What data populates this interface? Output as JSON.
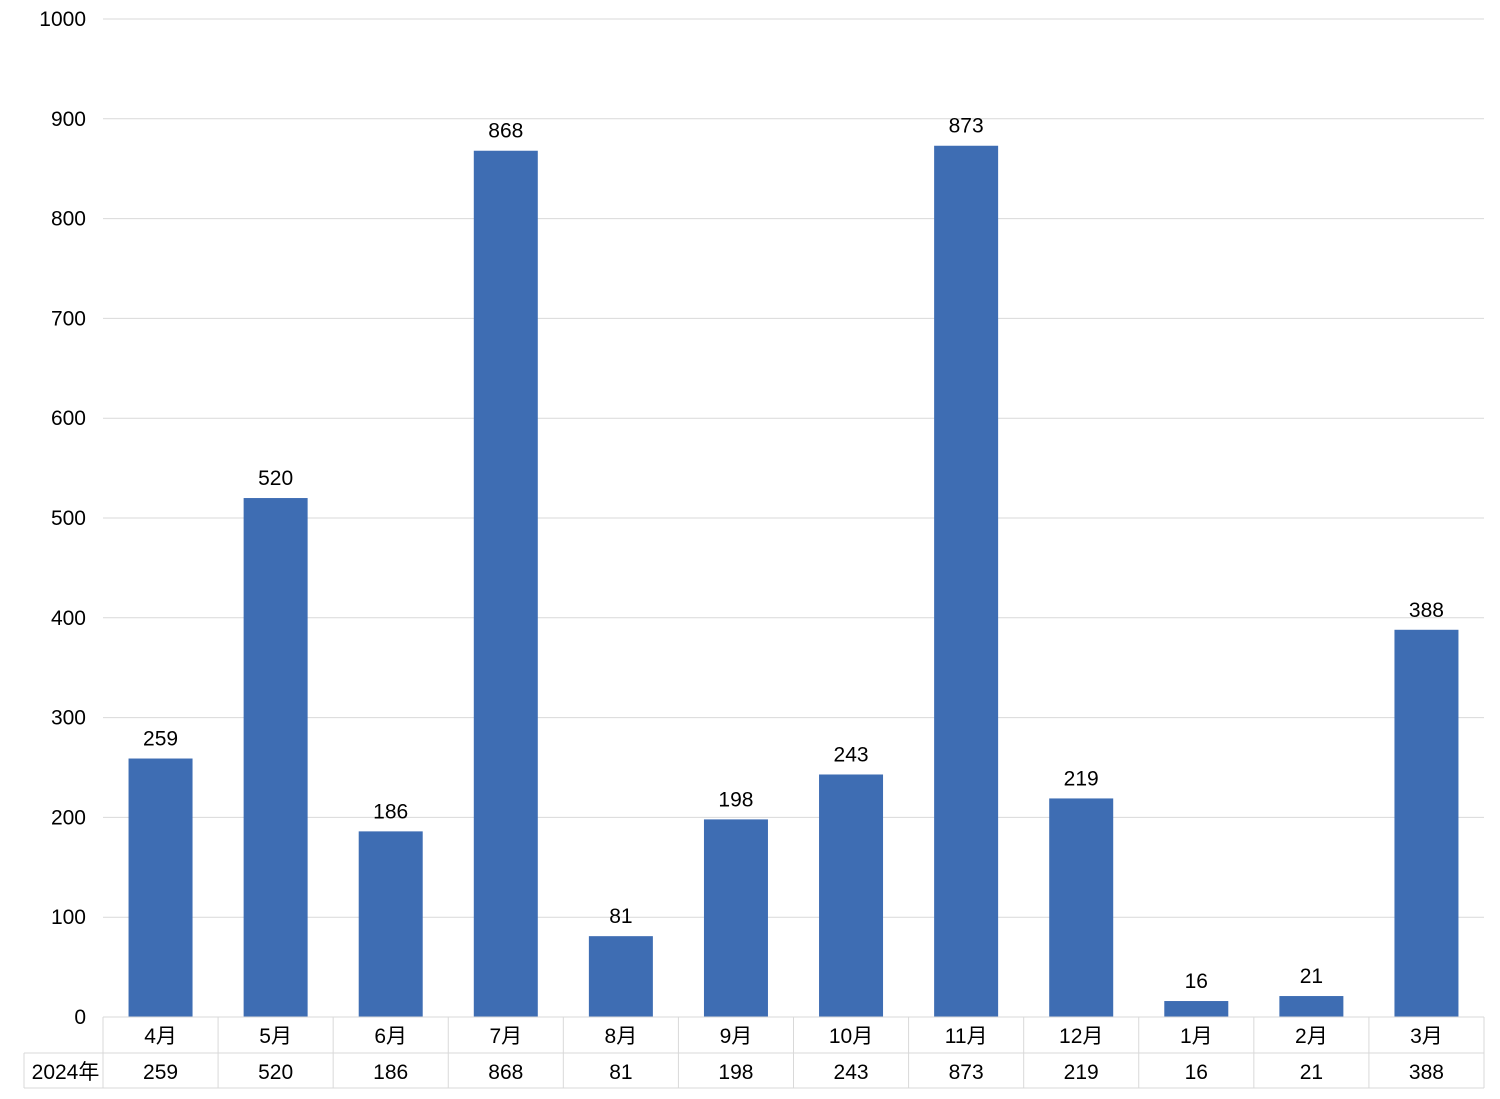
{
  "chart_data": {
    "type": "bar",
    "categories": [
      "4月",
      "5月",
      "6月",
      "7月",
      "8月",
      "9月",
      "10月",
      "11月",
      "12月",
      "1月",
      "2月",
      "3月"
    ],
    "series": [
      {
        "name": "2024年",
        "values": [
          259,
          520,
          186,
          868,
          81,
          198,
          243,
          873,
          219,
          16,
          21,
          388
        ]
      }
    ],
    "title": "",
    "xlabel": "",
    "ylabel": "",
    "ylim": [
      0,
      1000
    ],
    "yticks": [
      0,
      100,
      200,
      300,
      400,
      500,
      600,
      700,
      800,
      900,
      1000
    ],
    "grid": true,
    "data_labels": true,
    "data_table": true,
    "bar_color": "#3e6db3",
    "grid_color": "#d9d9d9"
  }
}
